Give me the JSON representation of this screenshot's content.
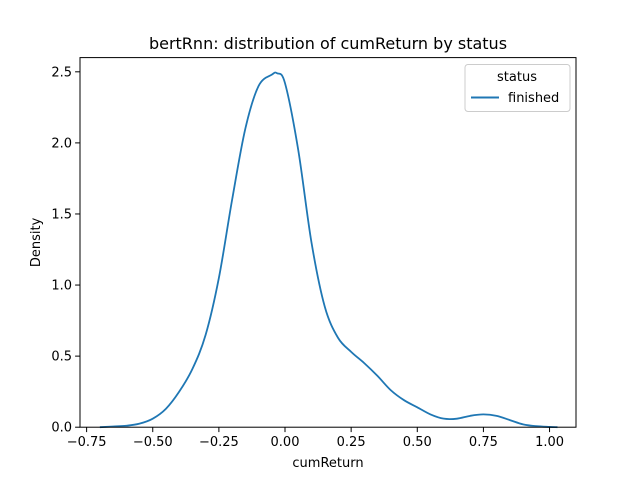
{
  "chart_data": {
    "type": "line",
    "title": "bertRnn: distribution of cumReturn by status",
    "xlabel": "cumReturn",
    "ylabel": "Density",
    "xlim": [
      -0.775,
      1.1
    ],
    "ylim": [
      0,
      2.6
    ],
    "xticks": [
      -0.75,
      -0.5,
      -0.25,
      0.0,
      0.25,
      0.5,
      0.75,
      1.0
    ],
    "xtick_labels": [
      "−0.75",
      "−0.50",
      "−0.25",
      "0.00",
      "0.25",
      "0.50",
      "0.75",
      "1.00"
    ],
    "yticks": [
      0.0,
      0.5,
      1.0,
      1.5,
      2.0,
      2.5
    ],
    "ytick_labels": [
      "0.0",
      "0.5",
      "1.0",
      "1.5",
      "2.0",
      "2.5"
    ],
    "grid": false,
    "legend": {
      "title": "status",
      "placement": "top-right",
      "entries": [
        "finished"
      ]
    },
    "series": [
      {
        "name": "finished",
        "color": "#1f77b4",
        "x": [
          -0.7,
          -0.65,
          -0.6,
          -0.55,
          -0.5,
          -0.45,
          -0.4,
          -0.35,
          -0.3,
          -0.25,
          -0.2,
          -0.15,
          -0.1,
          -0.05,
          -0.03,
          0.0,
          0.05,
          0.1,
          0.15,
          0.2,
          0.25,
          0.3,
          0.35,
          0.4,
          0.45,
          0.5,
          0.55,
          0.6,
          0.65,
          0.7,
          0.75,
          0.8,
          0.85,
          0.9,
          0.95,
          1.0,
          1.03
        ],
        "y": [
          0.0,
          0.005,
          0.01,
          0.025,
          0.06,
          0.13,
          0.25,
          0.41,
          0.65,
          1.05,
          1.6,
          2.1,
          2.4,
          2.48,
          2.49,
          2.42,
          1.95,
          1.3,
          0.85,
          0.63,
          0.53,
          0.45,
          0.36,
          0.26,
          0.19,
          0.14,
          0.09,
          0.06,
          0.06,
          0.08,
          0.09,
          0.08,
          0.05,
          0.02,
          0.007,
          0.002,
          0.0
        ]
      }
    ]
  }
}
